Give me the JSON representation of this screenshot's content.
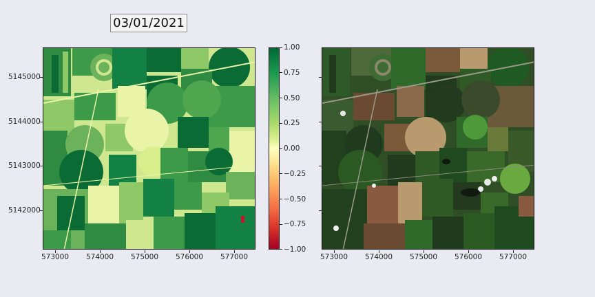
{
  "date_label": "03/01/2021",
  "ndvi_panel": {
    "colormap": "RdYlGn",
    "colors": {
      "dark": "#0b6b35",
      "mid": "#3d9a48",
      "light": "#8fc866",
      "pale": "#cfe890",
      "yellow": "#e9f4a8",
      "red": "#c0182a"
    }
  },
  "rgb_panel": {
    "colors": {
      "dark": "#1f3a1c",
      "green": "#2f6a2a",
      "bright": "#4e9a3a",
      "brown": "#7a5a3a",
      "tan": "#b89a6e",
      "gray": "#6e6e5a"
    }
  },
  "y_ticks": [
    "5145000",
    "5144000",
    "5143000",
    "5142000"
  ],
  "x_ticks": [
    "573000",
    "574000",
    "575000",
    "576000",
    "577000"
  ],
  "colorbar_ticks": [
    "1.00",
    "0.75",
    "0.50",
    "0.25",
    "0.00",
    "−0.25",
    "−0.50",
    "−0.75",
    "−1.00"
  ]
}
